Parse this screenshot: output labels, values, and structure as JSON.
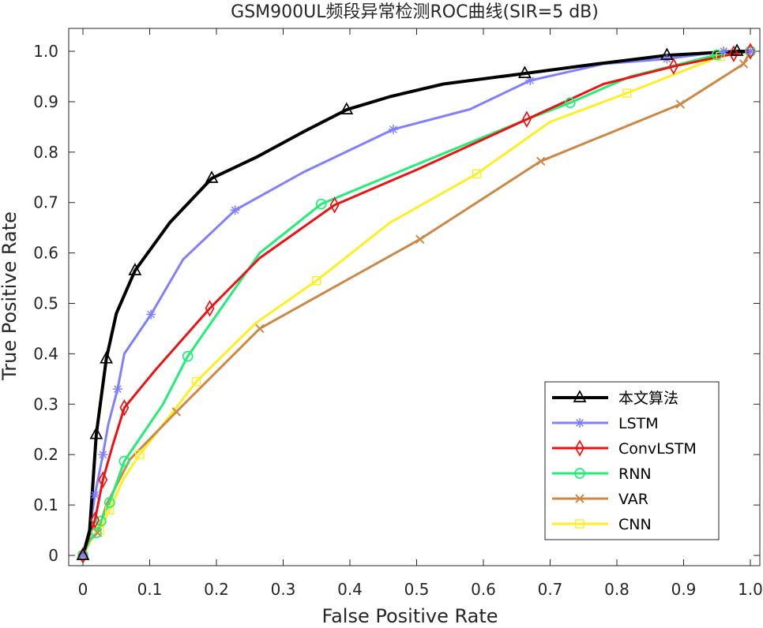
{
  "chart_data": {
    "type": "line",
    "title": "GSM900UL频段异常检测ROC曲线(SIR=5 dB)",
    "xlabel": "False Positive Rate",
    "ylabel": "True Positive Rate",
    "xlim": [
      0,
      1
    ],
    "ylim": [
      0,
      1
    ],
    "xticks": [
      "0",
      "0.1",
      "0.2",
      "0.3",
      "0.4",
      "0.5",
      "0.6",
      "0.7",
      "0.8",
      "0.9",
      "1.0"
    ],
    "yticks": [
      "0",
      "0.1",
      "0.2",
      "0.3",
      "0.4",
      "0.5",
      "0.6",
      "0.7",
      "0.8",
      "0.9",
      "1.0"
    ],
    "grid": false,
    "legend_position": "bottom-right",
    "series": [
      {
        "name": "本文算法",
        "color": "#000000",
        "marker": "triangle",
        "width": 4,
        "x": [
          0,
          0.01,
          0.02,
          0.035,
          0.05,
          0.078,
          0.13,
          0.193,
          0.26,
          0.33,
          0.395,
          0.46,
          0.54,
          0.662,
          0.77,
          0.875,
          0.98,
          1.0
        ],
        "y": [
          0,
          0.05,
          0.24,
          0.39,
          0.48,
          0.565,
          0.66,
          0.748,
          0.79,
          0.84,
          0.884,
          0.91,
          0.935,
          0.956,
          0.975,
          0.992,
          1.0,
          1.0
        ],
        "marked": [
          0,
          2,
          3,
          5,
          7,
          10,
          13,
          15,
          16
        ]
      },
      {
        "name": "LSTM",
        "color": "#8080ff",
        "marker": "star",
        "width": 3,
        "x": [
          0,
          0.01,
          0.018,
          0.03,
          0.038,
          0.052,
          0.062,
          0.102,
          0.15,
          0.228,
          0.33,
          0.465,
          0.58,
          0.67,
          0.78,
          0.875,
          0.96,
          1.0
        ],
        "y": [
          0,
          0.05,
          0.12,
          0.2,
          0.26,
          0.33,
          0.4,
          0.478,
          0.587,
          0.685,
          0.76,
          0.845,
          0.885,
          0.942,
          0.975,
          0.985,
          1.0,
          1.0
        ],
        "marked": [
          0,
          2,
          3,
          5,
          7,
          9,
          11,
          13,
          15,
          16,
          17
        ]
      },
      {
        "name": "ConvLSTM",
        "color": "#ee1111",
        "marker": "diamond",
        "width": 3,
        "x": [
          0,
          0.01,
          0.018,
          0.03,
          0.045,
          0.062,
          0.11,
          0.19,
          0.265,
          0.377,
          0.5,
          0.665,
          0.78,
          0.885,
          0.975,
          1.0
        ],
        "y": [
          0,
          0.04,
          0.07,
          0.15,
          0.22,
          0.293,
          0.37,
          0.49,
          0.59,
          0.695,
          0.765,
          0.865,
          0.935,
          0.97,
          0.995,
          1.0
        ],
        "marked": [
          0,
          2,
          3,
          5,
          7,
          9,
          11,
          13,
          14,
          15
        ]
      },
      {
        "name": "RNN",
        "color": "#22ee77",
        "marker": "circle",
        "width": 3,
        "x": [
          0,
          0.01,
          0.02,
          0.027,
          0.04,
          0.062,
          0.12,
          0.157,
          0.265,
          0.357,
          0.49,
          0.665,
          0.73,
          0.82,
          0.95,
          1.0
        ],
        "y": [
          0,
          0.03,
          0.045,
          0.068,
          0.105,
          0.187,
          0.3,
          0.395,
          0.6,
          0.697,
          0.77,
          0.865,
          0.898,
          0.95,
          0.993,
          1.0
        ],
        "marked": [
          0,
          2,
          3,
          4,
          5,
          7,
          9,
          12,
          14,
          15
        ]
      },
      {
        "name": "VAR",
        "color": "#cc8844",
        "marker": "x",
        "width": 3,
        "x": [
          0,
          0.01,
          0.022,
          0.035,
          0.07,
          0.14,
          0.265,
          0.505,
          0.686,
          0.895,
          0.99,
          1.0
        ],
        "y": [
          0,
          0.03,
          0.045,
          0.1,
          0.19,
          0.285,
          0.45,
          0.627,
          0.782,
          0.895,
          0.975,
          1.0
        ],
        "marked": [
          0,
          2,
          5,
          6,
          7,
          8,
          9,
          10
        ]
      },
      {
        "name": "CNN",
        "color": "#ffee22",
        "marker": "square",
        "width": 3,
        "x": [
          0,
          0.012,
          0.025,
          0.04,
          0.06,
          0.085,
          0.17,
          0.26,
          0.35,
          0.46,
          0.59,
          0.7,
          0.815,
          0.955,
          1.0
        ],
        "y": [
          0,
          0.03,
          0.05,
          0.09,
          0.15,
          0.2,
          0.345,
          0.462,
          0.545,
          0.66,
          0.757,
          0.86,
          0.917,
          0.99,
          1.0
        ],
        "marked": [
          0,
          2,
          3,
          5,
          6,
          8,
          10,
          12,
          13,
          14
        ]
      }
    ]
  }
}
